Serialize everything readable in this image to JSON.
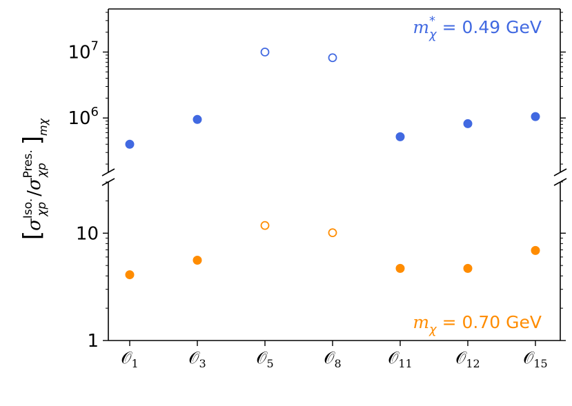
{
  "chart_data": {
    "type": "scatter",
    "categories": [
      "O1",
      "O3",
      "O5",
      "O8",
      "O11",
      "O12",
      "O15"
    ],
    "category_labels": [
      {
        "base": "𝒪",
        "sub": "1"
      },
      {
        "base": "𝒪",
        "sub": "3"
      },
      {
        "base": "𝒪",
        "sub": "5"
      },
      {
        "base": "𝒪",
        "sub": "8"
      },
      {
        "base": "𝒪",
        "sub": "11"
      },
      {
        "base": "𝒪",
        "sub": "12"
      },
      {
        "base": "𝒪",
        "sub": "15"
      }
    ],
    "ylabel": {
      "open": "[",
      "sigma": "σ",
      "iso_sup": "Iso.",
      "sub": "χp",
      "slash": "/",
      "pres_sup": "Pres.",
      "close": "]",
      "outer_sub": "mχ"
    },
    "yscale": "log",
    "broken_axis": true,
    "grid": false,
    "series": [
      {
        "name": "m*χ = 0.49 GeV",
        "label_parts": {
          "m": "m",
          "sub": "χ",
          "sup": "*",
          "value": " = 0.49 GeV"
        },
        "color": "#4169e1",
        "panel": "upper",
        "values": [
          400000,
          950000,
          10000000,
          8200000,
          520000,
          820000,
          1050000
        ],
        "hollow": [
          false,
          false,
          true,
          true,
          false,
          false,
          false
        ]
      },
      {
        "name": "mχ = 0.70 GeV",
        "label_parts": {
          "m": "m",
          "sub": "χ",
          "sup": "",
          "value": " = 0.70 GeV"
        },
        "color": "#ff8c00",
        "panel": "lower",
        "values": [
          4.1,
          5.6,
          11.8,
          10.1,
          4.7,
          4.7,
          6.9
        ],
        "hollow": [
          false,
          false,
          true,
          true,
          false,
          false,
          false
        ]
      }
    ],
    "upper_panel": {
      "ylim": [
        150000,
        45000000
      ],
      "ticks": [
        {
          "value": 1000000,
          "base": "10",
          "exp": "6"
        },
        {
          "value": 10000000,
          "base": "10",
          "exp": "7"
        }
      ]
    },
    "lower_panel": {
      "ylim": [
        1,
        30
      ],
      "ticks": [
        {
          "value": 1,
          "label": "1"
        },
        {
          "value": 10,
          "label": "10"
        }
      ]
    }
  }
}
